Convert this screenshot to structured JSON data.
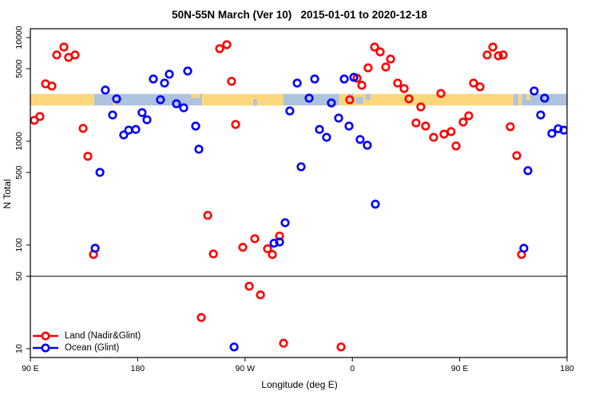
{
  "page": {
    "background": "#ffffff"
  },
  "chart_data": {
    "type": "scatter",
    "title": "50N-55N March (Ver 10)   2015-01-01 to 2020-12-18",
    "xlabel": "Longitude (deg E)",
    "ylabel": "N Total",
    "x_axis": {
      "min": 90,
      "max": 540,
      "ticks": [
        {
          "v": 90,
          "label": "90 E"
        },
        {
          "v": 180,
          "label": "180"
        },
        {
          "v": 270,
          "label": "90 W"
        },
        {
          "v": 360,
          "label": "0"
        },
        {
          "v": 450,
          "label": "90 E"
        },
        {
          "v": 540,
          "label": "180"
        }
      ]
    },
    "y_axis": {
      "scale": "log10",
      "min": 8.3,
      "max": 12150,
      "ticks": [
        {
          "v": 10000,
          "label": "10000"
        },
        {
          "v": 5000,
          "label": "5000"
        },
        {
          "v": 1000,
          "label": "1000"
        },
        {
          "v": 500,
          "label": "500"
        },
        {
          "v": 100,
          "label": "100"
        },
        {
          "v": 50,
          "label": "50"
        },
        {
          "v": 10,
          "label": "10"
        }
      ]
    },
    "reference_line": {
      "y": 50,
      "color": "#000000"
    },
    "land_ocean_band": {
      "n_range": [
        2210,
        2860
      ],
      "land_color": "#FCD77C",
      "ocean_color": "#AEC3DE",
      "segments": [
        {
          "from": 90,
          "to": 143.5,
          "type": "land"
        },
        {
          "from": 143.5,
          "to": 234,
          "type": "ocean"
        },
        {
          "from": 234,
          "to": 302,
          "type": "land"
        },
        {
          "from": 302,
          "to": 349,
          "type": "ocean"
        },
        {
          "from": 349,
          "to": 502,
          "type": "land"
        },
        {
          "from": 502,
          "to": 540,
          "type": "ocean"
        }
      ],
      "speckles": [
        {
          "from": 159,
          "to": 162,
          "type": "land",
          "top": 0.35,
          "bottom": 1
        },
        {
          "from": 225,
          "to": 232,
          "type": "land",
          "top": 0,
          "bottom": 0.35
        },
        {
          "from": 277,
          "to": 280,
          "type": "ocean",
          "top": 0.45,
          "bottom": 1
        },
        {
          "from": 356,
          "to": 361,
          "type": "ocean",
          "top": 0,
          "bottom": 0.55
        },
        {
          "from": 363,
          "to": 369,
          "type": "ocean",
          "top": 0.25,
          "bottom": 0.85
        },
        {
          "from": 371,
          "to": 375,
          "type": "ocean",
          "top": 0,
          "bottom": 0.5
        },
        {
          "from": 495,
          "to": 499,
          "type": "ocean",
          "top": 0,
          "bottom": 1
        },
        {
          "from": 506,
          "to": 509,
          "type": "land",
          "top": 0,
          "bottom": 0.55
        }
      ]
    },
    "series": [
      {
        "name": "Land (Nadir&Glint)",
        "color": "#FF0000",
        "marker": "open-circle",
        "points": [
          [
            118.1,
            8090
          ],
          [
            112.1,
            6780
          ],
          [
            122.1,
            6420
          ],
          [
            127.5,
            6780
          ],
          [
            102.7,
            3580
          ],
          [
            108.1,
            3400
          ],
          [
            98,
            1730
          ],
          [
            93.3,
            1590
          ],
          [
            134.2,
            1330
          ],
          [
            138.2,
            715
          ],
          [
            248.7,
            7800
          ],
          [
            254.7,
            8530
          ],
          [
            258.7,
            3780
          ],
          [
            262.1,
            1450
          ],
          [
            378.6,
            8090
          ],
          [
            383.3,
            7270
          ],
          [
            392,
            6200
          ],
          [
            373.2,
            5100
          ],
          [
            388,
            5190
          ],
          [
            363.9,
            4050
          ],
          [
            367.9,
            3460
          ],
          [
            357.8,
            2510
          ],
          [
            398,
            3640
          ],
          [
            403.4,
            3220
          ],
          [
            407.4,
            2560
          ],
          [
            417.4,
            2140
          ],
          [
            434.2,
            2890
          ],
          [
            461.6,
            3640
          ],
          [
            467,
            3340
          ],
          [
            477.7,
            8090
          ],
          [
            473,
            6780
          ],
          [
            482.4,
            6660
          ],
          [
            486.4,
            6780
          ],
          [
            452.9,
            1530
          ],
          [
            457.6,
            1760
          ],
          [
            413.4,
            1500
          ],
          [
            421.4,
            1400
          ],
          [
            428.1,
            1090
          ],
          [
            436.8,
            1170
          ],
          [
            442.8,
            1240
          ],
          [
            446.9,
            900
          ],
          [
            492.4,
            1380
          ],
          [
            497.8,
            727
          ],
          [
            238.7,
            193
          ],
          [
            142.9,
            81
          ],
          [
            243.4,
            82
          ],
          [
            268.1,
            95
          ],
          [
            278.2,
            115
          ],
          [
            288.9,
            92
          ],
          [
            292.9,
            81
          ],
          [
            298.9,
            122
          ],
          [
            273.5,
            40
          ],
          [
            282.9,
            33
          ],
          [
            233.3,
            20
          ],
          [
            302.3,
            11.3
          ],
          [
            350.5,
            10.4
          ],
          [
            501.8,
            81
          ]
        ]
      },
      {
        "name": "Ocean (Glint)",
        "color": "#0000FF",
        "marker": "open-circle",
        "points": [
          [
            152.9,
            3110
          ],
          [
            162.3,
            2560
          ],
          [
            159,
            1790
          ],
          [
            193.1,
            3980
          ],
          [
            202.5,
            3640
          ],
          [
            206.5,
            4430
          ],
          [
            221.9,
            4750
          ],
          [
            199.1,
            2510
          ],
          [
            212.5,
            2300
          ],
          [
            218.6,
            2100
          ],
          [
            183.7,
            1890
          ],
          [
            187.8,
            1610
          ],
          [
            168.3,
            1150
          ],
          [
            172.4,
            1280
          ],
          [
            178.4,
            1300
          ],
          [
            228.6,
            1400
          ],
          [
            231.3,
            837
          ],
          [
            148.3,
            501
          ],
          [
            307.6,
            1960
          ],
          [
            313.7,
            3640
          ],
          [
            328.4,
            3980
          ],
          [
            353.2,
            3980
          ],
          [
            361.2,
            4130
          ],
          [
            323.7,
            2600
          ],
          [
            342.4,
            2340
          ],
          [
            348.5,
            1670
          ],
          [
            357.2,
            1400
          ],
          [
            332.4,
            1300
          ],
          [
            338.4,
            1090
          ],
          [
            366.5,
            1040
          ],
          [
            372.5,
            915
          ],
          [
            317,
            567
          ],
          [
            512.5,
            3050
          ],
          [
            521.2,
            2600
          ],
          [
            517.9,
            1790
          ],
          [
            527.3,
            1190
          ],
          [
            532.6,
            1320
          ],
          [
            537.3,
            1280
          ],
          [
            507.2,
            520
          ],
          [
            144.3,
            93
          ],
          [
            303.6,
            164
          ],
          [
            294.3,
            104
          ],
          [
            298.9,
            107
          ],
          [
            260.8,
            10.4
          ],
          [
            379.3,
            247
          ],
          [
            503.8,
            93
          ]
        ]
      }
    ]
  }
}
